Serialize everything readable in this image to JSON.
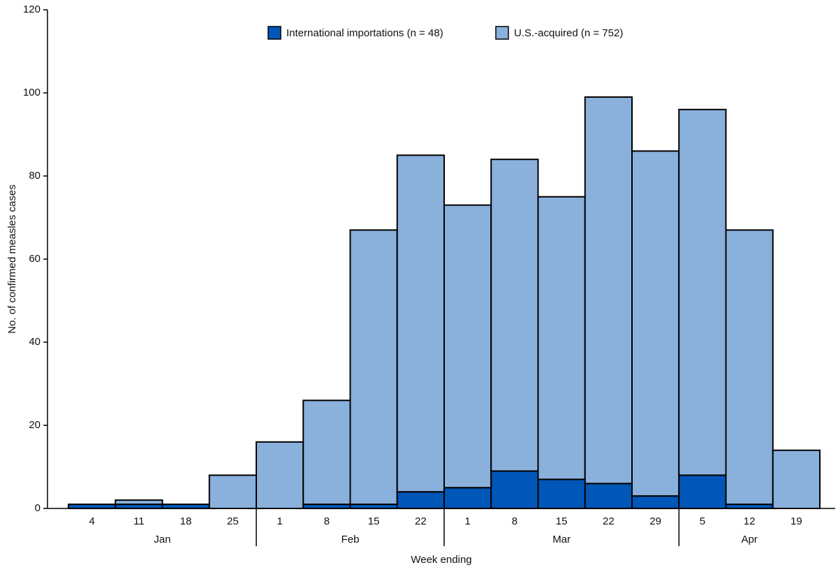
{
  "chart_data": {
    "type": "stacked_bar",
    "y_label": "No. of confirmed measles cases",
    "x_label": "Week ending",
    "groups": [
      {
        "name": "Jan",
        "categories": [
          "4",
          "11",
          "18",
          "25"
        ]
      },
      {
        "name": "Feb",
        "categories": [
          "1",
          "8",
          "15",
          "22"
        ]
      },
      {
        "name": "Mar",
        "categories": [
          "1",
          "8",
          "15",
          "22",
          "29"
        ]
      },
      {
        "name": "Apr",
        "categories": [
          "5",
          "12",
          "19"
        ]
      }
    ],
    "series": [
      {
        "name": "International importations (n = 48)",
        "color": "#0057b8",
        "values": [
          1,
          1,
          1,
          0,
          0,
          1,
          1,
          4,
          5,
          9,
          7,
          6,
          3,
          8,
          1,
          0
        ]
      },
      {
        "name": "U.S.-acquired (n = 752)",
        "color": "#8ab0dc",
        "values": [
          0,
          1,
          0,
          8,
          16,
          25,
          66,
          81,
          68,
          75,
          68,
          93,
          83,
          88,
          66,
          14
        ]
      }
    ],
    "ylim": [
      0,
      120
    ],
    "yticks": [
      0,
      20,
      40,
      60,
      80,
      100,
      120
    ],
    "grid": false,
    "legend": "top"
  }
}
